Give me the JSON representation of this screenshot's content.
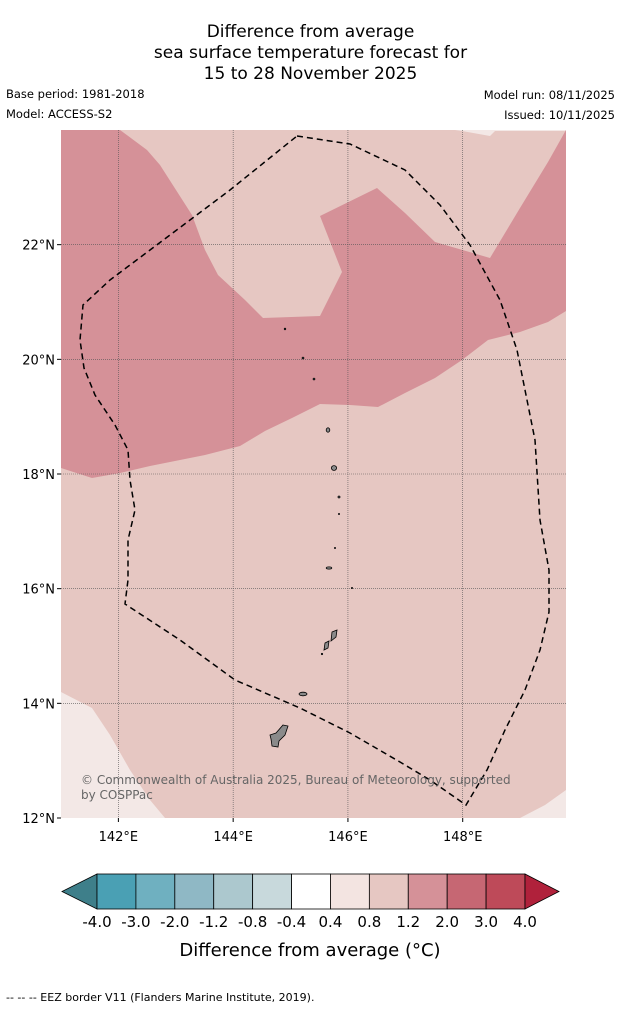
{
  "title_lines": [
    "Difference from average",
    "sea surface temperature forecast for",
    "15 to 28 November 2025"
  ],
  "meta": {
    "base_period": "Base period: 1981-2018",
    "model": "Model: ACCESS-S2",
    "model_run": "Model run: 08/11/2025",
    "issued": "Issued: 10/11/2025"
  },
  "map": {
    "lat_labels": [
      "22°N",
      "20°N",
      "18°N",
      "16°N",
      "14°N",
      "12°N"
    ],
    "lon_labels": [
      "142°E",
      "144°E",
      "146°E",
      "148°E"
    ],
    "lat_range": [
      12,
      24
    ],
    "lon_range": [
      141,
      149.8
    ],
    "watermark_line1": "© Commonwealth of Australia 2025, Bureau of Meteorology, supported",
    "watermark_line2": "by COSPPac"
  },
  "colorbar": {
    "tick_labels": [
      "-4.0",
      "-3.0",
      "-2.0",
      "-1.2",
      "-0.8",
      "-0.4",
      "0.4",
      "0.8",
      "1.2",
      "2.0",
      "3.0",
      "4.0"
    ],
    "colors": [
      "#3e7f8a",
      "#4aa0b4",
      "#6fb0c0",
      "#8fb8c5",
      "#acc8ce",
      "#c8d9dc",
      "#ffffff",
      "#f3e4e1",
      "#e6c7c2",
      "#d59198",
      "#c66773",
      "#be4a59",
      "#b0213b"
    ],
    "label": "Difference from average (°C)"
  },
  "legend_text": "--  --  -- EEZ border V11 (Flanders Marine Institute, 2019).",
  "region_colors": {
    "light": "#e6c7c2",
    "medium": "#d59198",
    "pale": "#f3e8e6"
  }
}
